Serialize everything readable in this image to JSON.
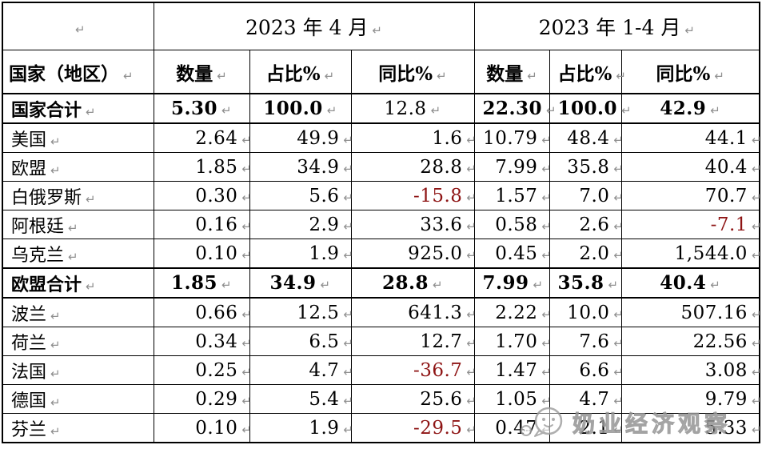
{
  "meta": {
    "pilcrow": "↵"
  },
  "colors": {
    "text": "#000000",
    "negative": "#8e1414",
    "paragraph_mark": "#8f8f8f",
    "border": "#000000",
    "watermark": "#9a9a9a"
  },
  "table": {
    "group_header": {
      "blank": "",
      "period_1": "2023 年 4 月",
      "period_2": "2023 年 1-4 月"
    },
    "columns": [
      "国家（地区）",
      "数量",
      "占比%",
      "同比%",
      "数量",
      "占比%",
      "同比%"
    ],
    "rows": [
      {
        "label": "国家合计",
        "total": true,
        "regular_cells": [
          2
        ],
        "cells": [
          "5.30",
          "100.0",
          "12.8",
          "22.30",
          "100.0",
          "42.9"
        ]
      },
      {
        "label": "美国",
        "cells": [
          "2.64",
          "49.9",
          "1.6",
          "10.79",
          "48.4",
          "44.1"
        ]
      },
      {
        "label": "欧盟",
        "cells": [
          "1.85",
          "34.9",
          "28.8",
          "7.99",
          "35.8",
          "40.4"
        ]
      },
      {
        "label": "白俄罗斯",
        "cells": [
          "0.30",
          "5.6",
          "-15.8",
          "1.57",
          "7.0",
          "70.7"
        ]
      },
      {
        "label": "阿根廷",
        "cells": [
          "0.16",
          "2.9",
          "33.6",
          "0.58",
          "2.6",
          "-7.1"
        ]
      },
      {
        "label": "乌克兰",
        "cells": [
          "0.10",
          "1.9",
          "925.0",
          "0.45",
          "2.0",
          "1,544.0"
        ]
      },
      {
        "label": "欧盟合计",
        "total": true,
        "cells": [
          "1.85",
          "34.9",
          "28.8",
          "7.99",
          "35.8",
          "40.4"
        ]
      },
      {
        "label": "波兰",
        "cells": [
          "0.66",
          "12.5",
          "641.3",
          "2.22",
          "10.0",
          "507.16"
        ]
      },
      {
        "label": "荷兰",
        "cells": [
          "0.34",
          "6.5",
          "12.7",
          "1.70",
          "7.6",
          "22.56"
        ]
      },
      {
        "label": "法国",
        "cells": [
          "0.25",
          "4.7",
          "-36.7",
          "1.47",
          "6.6",
          "3.08"
        ]
      },
      {
        "label": "德国",
        "cells": [
          "0.29",
          "5.4",
          "25.6",
          "1.05",
          "4.7",
          "9.79"
        ]
      },
      {
        "label": "芬兰",
        "cells": [
          "0.10",
          "1.9",
          "-29.5",
          "0.47",
          "2.1",
          "5.33"
        ]
      }
    ]
  },
  "watermark": {
    "text": "奶业经济观察"
  }
}
